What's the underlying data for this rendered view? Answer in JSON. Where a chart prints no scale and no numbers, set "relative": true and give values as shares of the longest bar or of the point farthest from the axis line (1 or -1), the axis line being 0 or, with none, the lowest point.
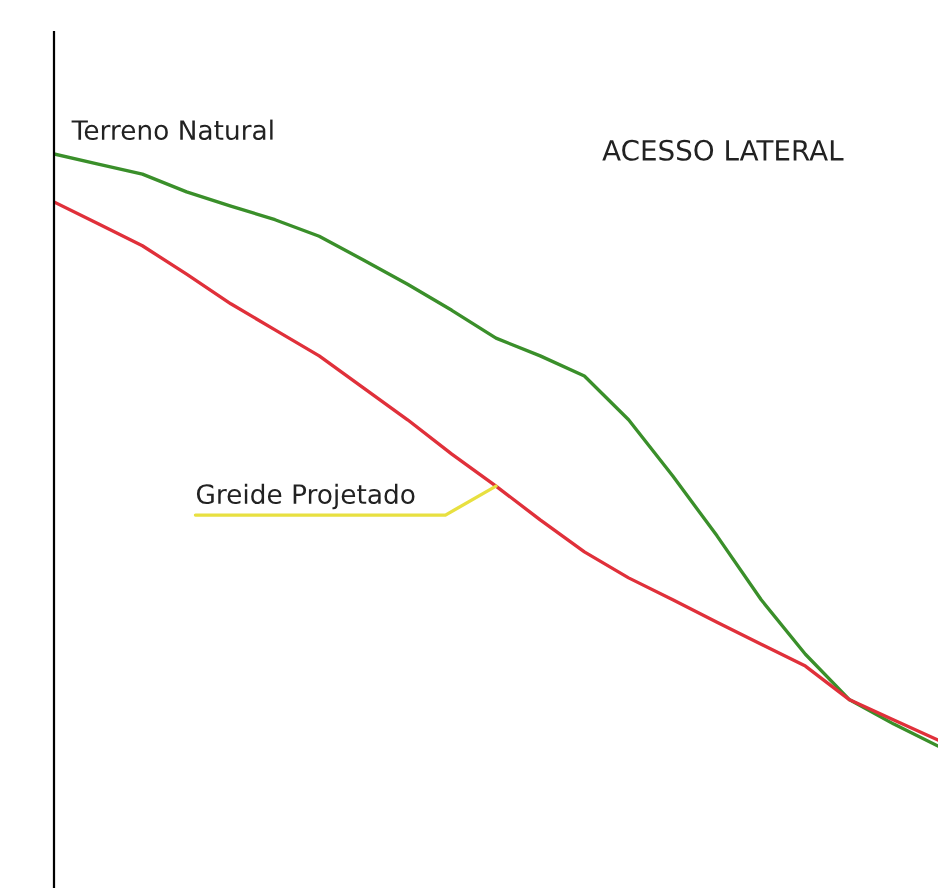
{
  "chart_data": {
    "type": "line",
    "relative": true,
    "legend": false,
    "categories": [
      null,
      null,
      null,
      null,
      null,
      null,
      null,
      null,
      null,
      null,
      null,
      null,
      null,
      null,
      null,
      null,
      null,
      null,
      null,
      null,
      null
    ],
    "series": [
      {
        "name": "Terreno Natural",
        "color": "#3a8f2a",
        "values": [
          1,
          0.983,
          0.966,
          0.936,
          0.912,
          0.889,
          0.861,
          0.821,
          0.78,
          0.736,
          0.689,
          0.659,
          0.625,
          0.551,
          0.456,
          0.355,
          0.247,
          0.155,
          0.078,
          0.037,
          0
        ]
      },
      {
        "name": "Greide Projetado",
        "color": "#e0303a",
        "values": [
          0.919,
          0.882,
          0.845,
          0.797,
          0.747,
          0.703,
          0.659,
          0.605,
          0.551,
          0.493,
          0.439,
          0.382,
          0.328,
          0.284,
          0.247,
          0.209,
          0.172,
          0.135,
          0.078,
          0.044,
          0.01
        ]
      }
    ],
    "annotations": [
      "ACESSO LATERAL"
    ]
  }
}
